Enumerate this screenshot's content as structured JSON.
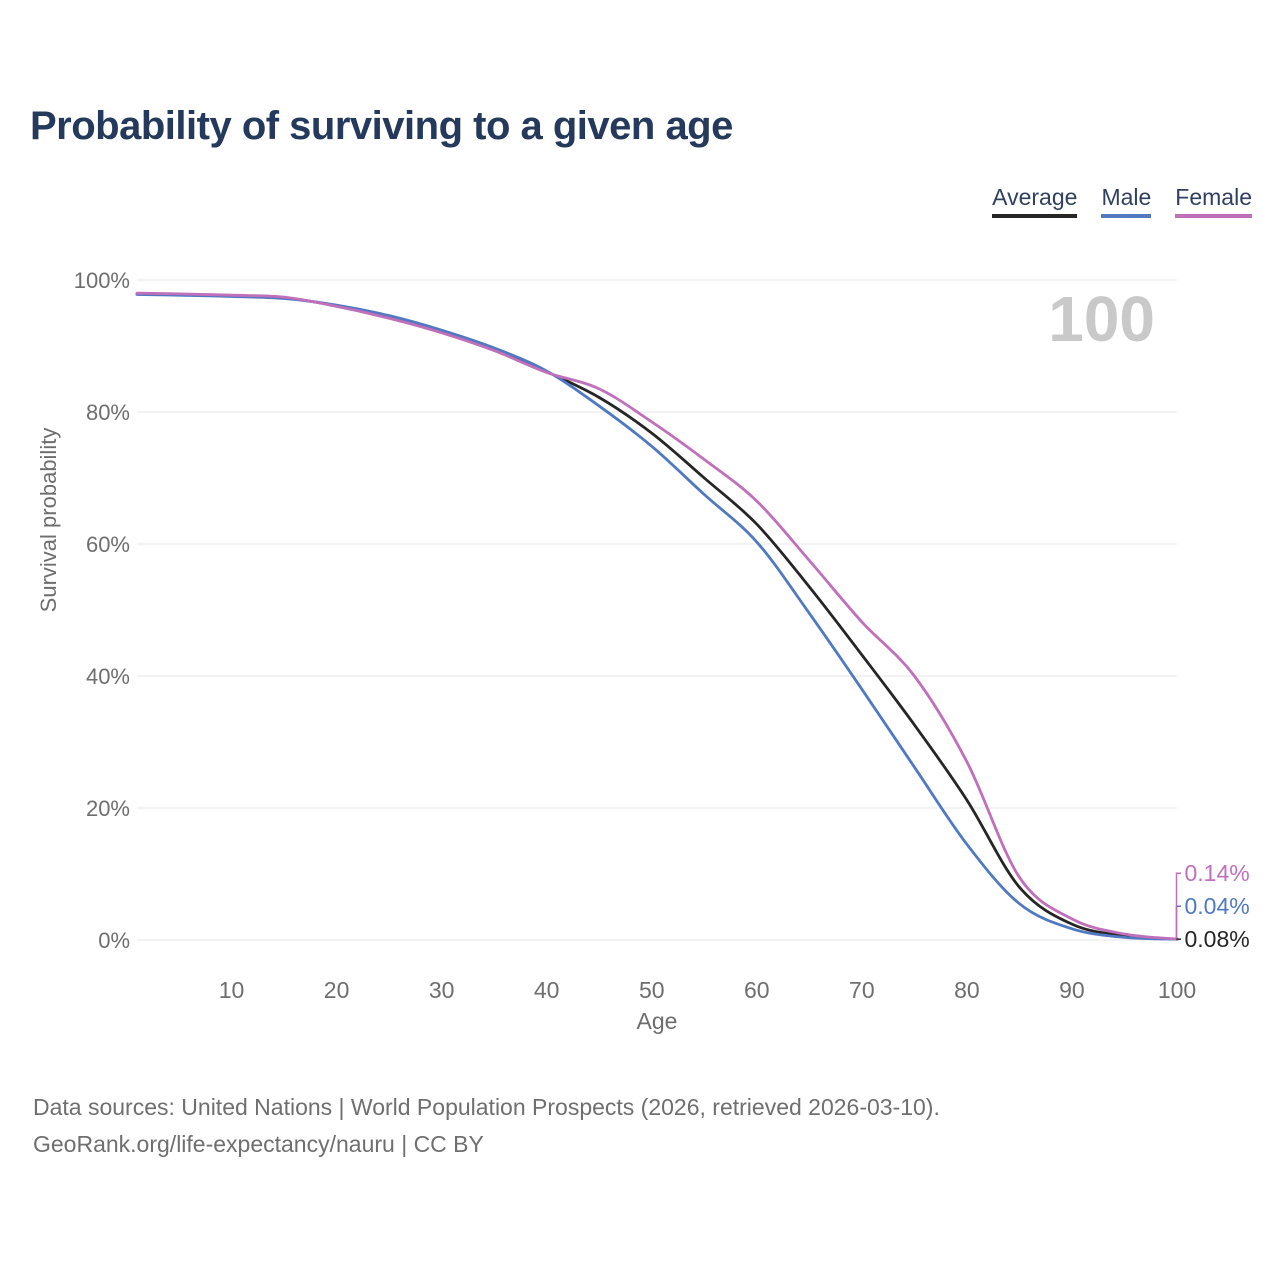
{
  "header": {
    "title": "Probability of surviving to a given age"
  },
  "legend": {
    "items": [
      {
        "label": "Average",
        "color": "#262626"
      },
      {
        "label": "Male",
        "color": "#5079c2"
      },
      {
        "label": "Female",
        "color": "#c070bb"
      }
    ]
  },
  "chart_data": {
    "type": "line",
    "title": "Probability of surviving to a given age",
    "xlabel": "Age",
    "ylabel": "Survival probability",
    "watermark": "100",
    "xlim": [
      1,
      100
    ],
    "ylim": [
      0,
      100
    ],
    "x_ticks": [
      10,
      20,
      30,
      40,
      50,
      60,
      70,
      80,
      90,
      100
    ],
    "y_ticks": [
      {
        "value": 0,
        "label": "0%"
      },
      {
        "value": 20,
        "label": "20%"
      },
      {
        "value": 40,
        "label": "40%"
      },
      {
        "value": 60,
        "label": "60%"
      },
      {
        "value": 80,
        "label": "80%"
      },
      {
        "value": 100,
        "label": "100%"
      }
    ],
    "grid": "horizontal-only",
    "legend_position": "top-right",
    "x": [
      1,
      5,
      10,
      15,
      20,
      25,
      30,
      35,
      40,
      45,
      50,
      55,
      60,
      65,
      70,
      75,
      80,
      85,
      90,
      95,
      100
    ],
    "series": [
      {
        "name": "Average",
        "color": "#262626",
        "end_label": "0.08%",
        "values": [
          97.9,
          97.8,
          97.6,
          97.3,
          96.1,
          94.4,
          92.2,
          89.5,
          86.1,
          82.2,
          76.8,
          70.0,
          63.0,
          53.5,
          43.2,
          32.6,
          21.2,
          8.0,
          2.4,
          0.65,
          0.08
        ]
      },
      {
        "name": "Male",
        "color": "#5079c2",
        "end_label": "0.04%",
        "values": [
          97.8,
          97.7,
          97.5,
          97.2,
          96.2,
          94.6,
          92.4,
          89.7,
          86.2,
          80.9,
          74.8,
          67.5,
          60.3,
          49.5,
          38.0,
          26.2,
          14.5,
          5.5,
          1.7,
          0.4,
          0.04
        ]
      },
      {
        "name": "Female",
        "color": "#c070bb",
        "end_label": "0.14%",
        "values": [
          98.0,
          97.9,
          97.7,
          97.4,
          96.0,
          94.2,
          92.0,
          89.3,
          86.0,
          83.5,
          78.5,
          72.8,
          66.5,
          57.5,
          48.2,
          40.0,
          27.0,
          9.5,
          3.2,
          0.9,
          0.14
        ]
      }
    ]
  },
  "footer": {
    "line1": "Data sources: United Nations | World Population Prospects (2026, retrieved 2026-03-10).",
    "line2": "GeoRank.org/life-expectancy/nauru | CC BY"
  },
  "colors": {
    "title": "#24395b",
    "axis_text": "#6e6e6e",
    "gridline": "#e7e7e7",
    "watermark": "#c9c9c9",
    "footer_text": "#6f6f6f"
  }
}
